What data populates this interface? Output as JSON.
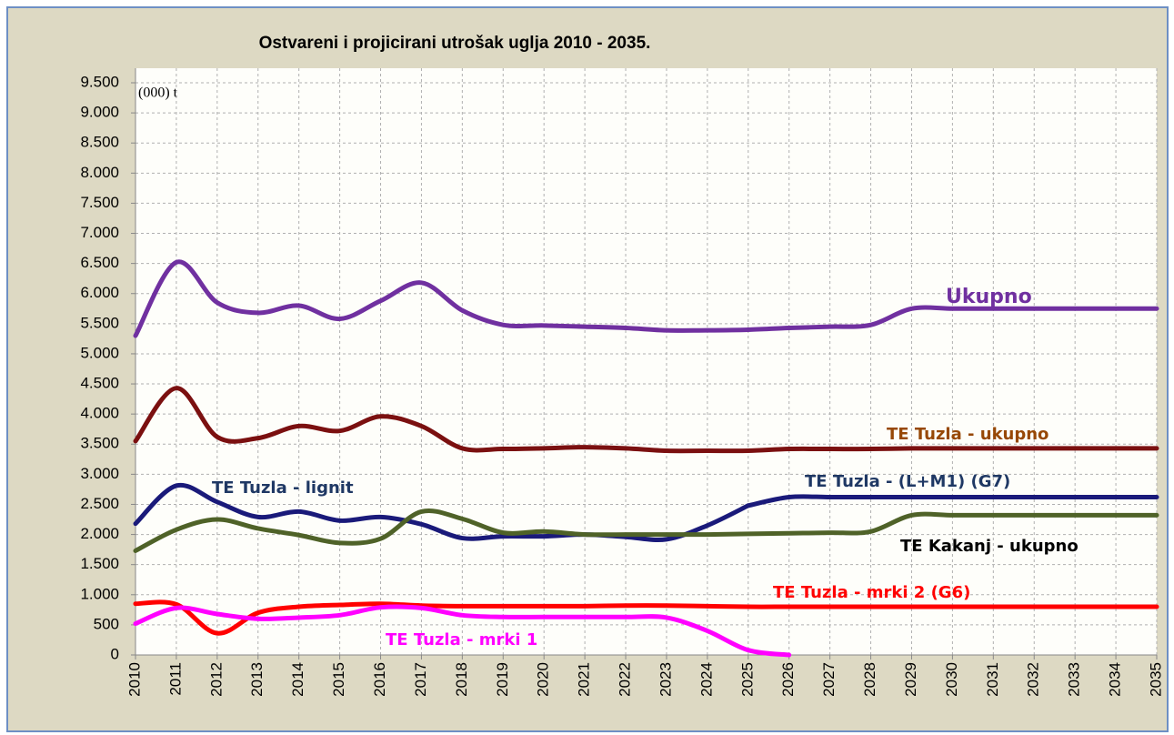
{
  "chart_data": {
    "type": "line",
    "title": "Ostvareni i projicirani utrošak uglja  2010 - 2035.",
    "y_label": "(000) t",
    "x": [
      2010,
      2011,
      2012,
      2013,
      2014,
      2015,
      2016,
      2017,
      2018,
      2019,
      2020,
      2021,
      2022,
      2023,
      2024,
      2025,
      2026,
      2027,
      2028,
      2029,
      2030,
      2031,
      2032,
      2033,
      2034,
      2035
    ],
    "xlim": [
      2010,
      2035
    ],
    "xticks": [
      2010,
      2011,
      2012,
      2013,
      2014,
      2015,
      2016,
      2017,
      2018,
      2019,
      2020,
      2021,
      2022,
      2023,
      2024,
      2025,
      2026,
      2027,
      2028,
      2029,
      2030,
      2031,
      2032,
      2033,
      2034,
      2035
    ],
    "ylim": [
      0,
      9500
    ],
    "yticks": [
      0,
      500,
      {
        "value": 1000,
        "label": "1.000"
      },
      {
        "value": 1500,
        "label": "1.500"
      },
      {
        "value": 2000,
        "label": "2.000"
      },
      {
        "value": 2500,
        "label": "2.500"
      },
      {
        "value": 3000,
        "label": "3.000"
      },
      {
        "value": 3500,
        "label": "3.500"
      },
      {
        "value": 4000,
        "label": "4.000"
      },
      {
        "value": 4500,
        "label": "4.500"
      },
      {
        "value": 5000,
        "label": "5.000"
      },
      {
        "value": 5500,
        "label": "5.500"
      },
      {
        "value": 6000,
        "label": "6.000"
      },
      {
        "value": 6500,
        "label": "6.500"
      },
      {
        "value": 7000,
        "label": "7.000"
      },
      {
        "value": 7500,
        "label": "7.500"
      },
      {
        "value": 8000,
        "label": "8.000"
      },
      {
        "value": 8500,
        "label": "8.500"
      },
      {
        "value": 9000,
        "label": "9.000"
      },
      {
        "value": 9500,
        "label": "9.500"
      }
    ],
    "grid": true,
    "series": [
      {
        "name": "Ukupno",
        "color": "#7030a0",
        "values": [
          5300,
          6520,
          5850,
          5680,
          5800,
          5580,
          5880,
          6180,
          5720,
          5480,
          5470,
          5450,
          5430,
          5390,
          5390,
          5400,
          5430,
          5450,
          5480,
          5750,
          5750,
          5750,
          5750,
          5750,
          5750,
          5750
        ]
      },
      {
        "name": "TE Tuzla - ukupno",
        "color": "#7b1010",
        "values": [
          3550,
          4430,
          3620,
          3600,
          3800,
          3720,
          3960,
          3800,
          3430,
          3420,
          3430,
          3450,
          3430,
          3390,
          3390,
          3390,
          3420,
          3420,
          3420,
          3430,
          3430,
          3430,
          3430,
          3430,
          3430,
          3430
        ]
      },
      {
        "name": "TE Tuzla - lignit",
        "color": "#1a1a7a",
        "values": [
          2180,
          2810,
          2540,
          2290,
          2380,
          2230,
          2290,
          2170,
          1940,
          1970,
          1970,
          2000,
          1960,
          1920,
          2150,
          2480,
          null,
          null,
          null,
          null,
          null,
          null,
          null,
          null,
          null,
          null
        ]
      },
      {
        "name": "TE Tuzla - (L+M1) (G7)",
        "color": "#1a1a7a",
        "values": [
          null,
          null,
          null,
          null,
          null,
          null,
          null,
          null,
          null,
          null,
          null,
          null,
          null,
          null,
          null,
          2480,
          2620,
          2620,
          2620,
          2620,
          2620,
          2620,
          2620,
          2620,
          2620,
          2620
        ]
      },
      {
        "name": "TE Kakanj - ukupno",
        "color": "#4f6228",
        "values": [
          1730,
          2080,
          2250,
          2100,
          1990,
          1860,
          1930,
          2380,
          2260,
          2030,
          2050,
          2000,
          2000,
          2000,
          2000,
          2010,
          2020,
          2030,
          2050,
          2320,
          2320,
          2320,
          2320,
          2320,
          2320,
          2320
        ]
      },
      {
        "name": "TE Tuzla - mrki 2 (G6)",
        "color": "#ff0000",
        "values": [
          850,
          840,
          360,
          700,
          800,
          830,
          850,
          820,
          810,
          810,
          810,
          810,
          820,
          820,
          810,
          800,
          800,
          800,
          800,
          800,
          800,
          800,
          800,
          800,
          800,
          800
        ]
      },
      {
        "name": "TE Tuzla - mrki 1",
        "color": "#ff00ff",
        "values": [
          520,
          780,
          680,
          600,
          620,
          660,
          790,
          780,
          660,
          630,
          630,
          630,
          630,
          620,
          400,
          80,
          0,
          null,
          null,
          null,
          null,
          null,
          null,
          null,
          null,
          null
        ]
      }
    ]
  }
}
